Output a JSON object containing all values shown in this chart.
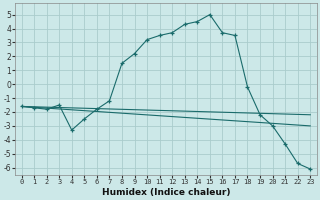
{
  "xlabel": "Humidex (Indice chaleur)",
  "background_color": "#cce8e8",
  "grid_color": "#aacccc",
  "line_color": "#1a6b6b",
  "xlim": [
    -0.5,
    23.5
  ],
  "ylim": [
    -6.5,
    5.8
  ],
  "yticks": [
    -6,
    -5,
    -4,
    -3,
    -2,
    -1,
    0,
    1,
    2,
    3,
    4,
    5
  ],
  "xticks": [
    0,
    1,
    2,
    3,
    4,
    5,
    6,
    7,
    8,
    9,
    10,
    11,
    12,
    13,
    14,
    15,
    16,
    17,
    18,
    19,
    20,
    21,
    22,
    23
  ],
  "series_main": {
    "x": [
      0,
      1,
      2,
      3,
      4,
      5,
      6,
      7,
      8,
      9,
      10,
      11,
      12,
      13,
      14,
      15,
      16,
      17,
      18,
      19,
      20,
      21,
      22,
      23
    ],
    "y": [
      -1.6,
      -1.7,
      -1.8,
      -1.5,
      -3.3,
      -2.5,
      -1.8,
      -1.2,
      1.5,
      2.2,
      3.2,
      3.5,
      3.7,
      4.3,
      4.5,
      5.0,
      3.7,
      3.5,
      -0.2,
      -2.2,
      -3.0,
      -4.3,
      -5.7,
      -6.1
    ]
  },
  "series_trend1": {
    "x": [
      0,
      23
    ],
    "y": [
      -1.6,
      -2.2
    ]
  },
  "series_trend2": {
    "x": [
      0,
      23
    ],
    "y": [
      -1.6,
      -3.0
    ]
  }
}
